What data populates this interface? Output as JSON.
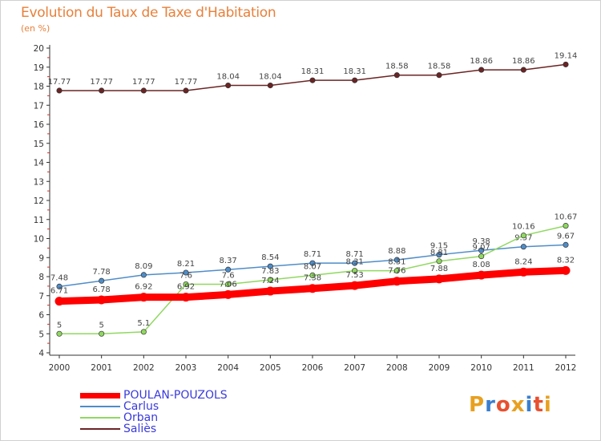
{
  "header": {
    "title": "Evolution du Taux de Taxe d'Habitation",
    "unit": "(en %)"
  },
  "logo": {
    "text": "Proxiti",
    "letters": [
      "P",
      "r",
      "o",
      "x",
      "i",
      "t",
      "i"
    ],
    "colors": [
      "#e8a020",
      "#3a7fd0",
      "#e85030",
      "#e8a020",
      "#3a7fd0",
      "#e85030",
      "#e8a020"
    ]
  },
  "chart_data": {
    "type": "line",
    "title": "Evolution du Taux de Taxe d'Habitation",
    "ylabel": "(en %)",
    "xlabel": "",
    "x": [
      "2000",
      "2001",
      "2002",
      "2003",
      "2004",
      "2005",
      "2006",
      "2007",
      "2008",
      "2009",
      "2010",
      "2011",
      "2012"
    ],
    "ylim": [
      4,
      20
    ],
    "yticks": [
      "4",
      "5",
      "6",
      "7",
      "8",
      "9",
      "10",
      "11",
      "12",
      "13",
      "14",
      "15",
      "16",
      "17",
      "18",
      "19",
      "20"
    ],
    "grid": false,
    "legend": "bottom-left",
    "series": [
      {
        "name": "Saliès",
        "color": "#6b2424",
        "values": [
          17.77,
          17.77,
          17.77,
          17.77,
          18.04,
          18.04,
          18.31,
          18.31,
          18.58,
          18.58,
          18.86,
          18.86,
          19.14
        ],
        "labels": [
          "17.77",
          "17.77",
          "17.77",
          "17.77",
          "18.04",
          "18.04",
          "18.31",
          "18.31",
          "18.58",
          "18.58",
          "18.86",
          "18.86",
          "19.14"
        ]
      },
      {
        "name": "Carlus",
        "color": "#4f8dc8",
        "values": [
          7.48,
          7.78,
          8.09,
          8.21,
          8.37,
          8.54,
          8.71,
          8.71,
          8.88,
          9.15,
          9.38,
          9.57,
          9.67
        ],
        "labels": [
          "7.48",
          "7.78",
          "8.09",
          "8.21",
          "8.37",
          "8.54",
          "8.71",
          "8.71",
          "8.88",
          "9.15",
          "9.38",
          "9.57",
          "9.67"
        ]
      },
      {
        "name": "Orban",
        "color": "#90d860",
        "values": [
          5,
          5,
          5.1,
          7.6,
          7.6,
          7.83,
          8.07,
          8.31,
          8.31,
          8.81,
          9.07,
          10.16,
          10.67
        ],
        "labels": [
          "5",
          "5",
          "5.1",
          "7.6",
          "7.6",
          "7.83",
          "8.07",
          "8.31",
          "8.31",
          "8.81",
          "9.07",
          "10.16",
          "10.67"
        ]
      },
      {
        "name": "POULAN-POUZOLS",
        "color": "#ff0000",
        "values": [
          6.71,
          6.78,
          6.92,
          6.92,
          7.06,
          7.24,
          7.38,
          7.53,
          7.76,
          7.88,
          8.08,
          8.24,
          8.32
        ],
        "labels": [
          "6.71",
          "6.78",
          "6.92",
          "6.92",
          "7.06",
          "7.24",
          "7.38",
          "7.53",
          "7.76",
          "7.88",
          "8.08",
          "8.24",
          "8.32"
        ]
      }
    ],
    "legend_items": [
      {
        "name": "POULAN-POUZOLS",
        "color": "#ff0000",
        "text_color": "#3a3adc"
      },
      {
        "name": "Carlus",
        "color": "#4f8dc8",
        "text_color": "#3a3adc"
      },
      {
        "name": "Orban",
        "color": "#90d860",
        "text_color": "#3a3adc"
      },
      {
        "name": "Saliès",
        "color": "#6b2424",
        "text_color": "#3a3adc"
      }
    ]
  }
}
